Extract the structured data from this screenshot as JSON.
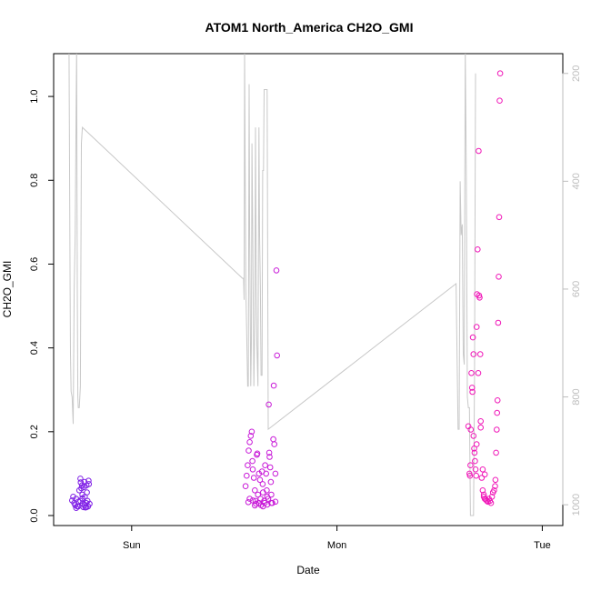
{
  "chart_data": {
    "type": "scatter",
    "title": "ATOM1 North_America CH2O_GMI",
    "xlabel": "Date",
    "ylabel": "CH2O_GMI",
    "x_ticks": [
      "Sun",
      "Mon",
      "Tue"
    ],
    "y_ticks": [
      "0.0",
      "0.2",
      "0.4",
      "0.6",
      "0.8",
      "1.0"
    ],
    "y2_ticks": [
      "200",
      "400",
      "600",
      "800",
      "1000"
    ],
    "ylim": [
      0,
      1.1
    ],
    "y2lim": [
      1020,
      165
    ],
    "xlim_days": [
      -0.38,
      2.1
    ],
    "colors": {
      "pressure_line": "#c8c8c8",
      "points_early": "#7f1fe6",
      "points_late": "#f018b8",
      "axis": "#000000",
      "right_axis": "#bdbdbd"
    },
    "series": [
      {
        "points": [
          [
            -0.29,
            0.036
          ],
          [
            -0.285,
            0.045
          ],
          [
            -0.28,
            0.03
          ],
          [
            -0.275,
            0.025
          ],
          [
            -0.27,
            0.04
          ],
          [
            -0.265,
            0.022
          ],
          [
            -0.26,
            0.033
          ],
          [
            -0.255,
            0.06
          ],
          [
            -0.25,
            0.088
          ],
          [
            -0.248,
            0.079
          ],
          [
            -0.245,
            0.065
          ],
          [
            -0.242,
            0.072
          ],
          [
            -0.24,
            0.05
          ],
          [
            -0.238,
            0.028
          ],
          [
            -0.235,
            0.02
          ],
          [
            -0.232,
            0.068
          ],
          [
            -0.23,
            0.08
          ],
          [
            -0.228,
            0.045
          ],
          [
            -0.225,
            0.019
          ],
          [
            -0.222,
            0.03
          ],
          [
            -0.22,
            0.072
          ],
          [
            -0.218,
            0.055
          ],
          [
            -0.215,
            0.035
          ],
          [
            -0.212,
            0.022
          ],
          [
            -0.21,
            0.083
          ],
          [
            -0.208,
            0.075
          ],
          [
            -0.205,
            0.028
          ],
          [
            -0.27,
            0.018
          ],
          [
            -0.26,
            0.022
          ],
          [
            -0.25,
            0.035
          ],
          [
            -0.24,
            0.041
          ],
          [
            -0.23,
            0.025
          ],
          [
            -0.22,
            0.02
          ]
        ]
      },
      {
        "points": [
          [
            0.555,
            0.07
          ],
          [
            0.56,
            0.095
          ],
          [
            0.565,
            0.12
          ],
          [
            0.57,
            0.155
          ],
          [
            0.575,
            0.175
          ],
          [
            0.58,
            0.19
          ],
          [
            0.585,
            0.2
          ],
          [
            0.588,
            0.13
          ],
          [
            0.59,
            0.11
          ],
          [
            0.595,
            0.09
          ],
          [
            0.6,
            0.06
          ],
          [
            0.603,
            0.035
          ],
          [
            0.606,
            0.028
          ],
          [
            0.61,
            0.145
          ],
          [
            0.612,
            0.148
          ],
          [
            0.615,
            0.05
          ],
          [
            0.618,
            0.03
          ],
          [
            0.62,
            0.1
          ],
          [
            0.625,
            0.085
          ],
          [
            0.628,
            0.04
          ],
          [
            0.63,
            0.025
          ],
          [
            0.635,
            0.105
          ],
          [
            0.638,
            0.075
          ],
          [
            0.64,
            0.055
          ],
          [
            0.645,
            0.035
          ],
          [
            0.648,
            0.03
          ],
          [
            0.65,
            0.12
          ],
          [
            0.655,
            0.1
          ],
          [
            0.658,
            0.06
          ],
          [
            0.66,
            0.045
          ],
          [
            0.665,
            0.04
          ],
          [
            0.668,
            0.265
          ],
          [
            0.67,
            0.15
          ],
          [
            0.672,
            0.14
          ],
          [
            0.675,
            0.115
          ],
          [
            0.678,
            0.08
          ],
          [
            0.68,
            0.05
          ],
          [
            0.685,
            0.03
          ],
          [
            0.69,
            0.182
          ],
          [
            0.692,
            0.31
          ],
          [
            0.695,
            0.17
          ],
          [
            0.7,
            0.1
          ],
          [
            0.705,
            0.585
          ],
          [
            0.708,
            0.382
          ],
          [
            0.568,
            0.032
          ],
          [
            0.575,
            0.04
          ],
          [
            0.59,
            0.036
          ],
          [
            0.6,
            0.024
          ],
          [
            0.62,
            0.03
          ],
          [
            0.64,
            0.022
          ],
          [
            0.66,
            0.026
          ],
          [
            0.68,
            0.03
          ],
          [
            0.7,
            0.033
          ]
        ]
      },
      {
        "points": [
          [
            1.64,
            0.213
          ],
          [
            1.645,
            0.1
          ],
          [
            1.648,
            0.095
          ],
          [
            1.65,
            0.12
          ],
          [
            1.652,
            0.205
          ],
          [
            1.655,
            0.34
          ],
          [
            1.658,
            0.305
          ],
          [
            1.66,
            0.295
          ],
          [
            1.662,
            0.425
          ],
          [
            1.665,
            0.385
          ],
          [
            1.668,
            0.16
          ],
          [
            1.67,
            0.15
          ],
          [
            1.672,
            0.13
          ],
          [
            1.675,
            0.11
          ],
          [
            1.678,
            0.095
          ],
          [
            1.68,
            0.45
          ],
          [
            1.682,
            0.528
          ],
          [
            1.685,
            0.635
          ],
          [
            1.688,
            0.34
          ],
          [
            1.69,
            0.87
          ],
          [
            1.692,
            0.525
          ],
          [
            1.695,
            0.52
          ],
          [
            1.698,
            0.385
          ],
          [
            1.7,
            0.225
          ],
          [
            1.705,
            0.09
          ],
          [
            1.71,
            0.06
          ],
          [
            1.715,
            0.045
          ],
          [
            1.72,
            0.04
          ],
          [
            1.725,
            0.038
          ],
          [
            1.73,
            0.035
          ],
          [
            1.735,
            0.033
          ],
          [
            1.74,
            0.04
          ],
          [
            1.745,
            0.035
          ],
          [
            1.75,
            0.03
          ],
          [
            1.755,
            0.045
          ],
          [
            1.76,
            0.055
          ],
          [
            1.765,
            0.06
          ],
          [
            1.77,
            0.07
          ],
          [
            1.772,
            0.085
          ],
          [
            1.775,
            0.15
          ],
          [
            1.778,
            0.205
          ],
          [
            1.78,
            0.245
          ],
          [
            1.782,
            0.275
          ],
          [
            1.785,
            0.46
          ],
          [
            1.788,
            0.57
          ],
          [
            1.79,
            0.712
          ],
          [
            1.792,
            0.99
          ],
          [
            1.795,
            1.055
          ],
          [
            1.715,
            0.05
          ],
          [
            1.7,
            0.21
          ],
          [
            1.68,
            0.17
          ],
          [
            1.665,
            0.19
          ],
          [
            1.71,
            0.11
          ],
          [
            1.72,
            0.098
          ]
        ]
      }
    ],
    "pressure_line": [
      [
        -0.305,
        150
      ],
      [
        -0.3,
        600
      ],
      [
        -0.298,
        720
      ],
      [
        -0.295,
        790
      ],
      [
        -0.29,
        800
      ],
      [
        -0.285,
        850
      ],
      [
        -0.28,
        600
      ],
      [
        -0.275,
        500
      ],
      [
        -0.27,
        250
      ],
      [
        -0.268,
        150
      ],
      [
        -0.265,
        600
      ],
      [
        -0.262,
        800
      ],
      [
        -0.26,
        820
      ],
      [
        -0.255,
        820
      ],
      [
        -0.25,
        780
      ],
      [
        -0.245,
        330
      ],
      [
        -0.24,
        300
      ],
      [
        0.54,
        580
      ],
      [
        0.545,
        580
      ],
      [
        0.548,
        620
      ],
      [
        0.55,
        150
      ],
      [
        0.553,
        400
      ],
      [
        0.556,
        600
      ],
      [
        0.56,
        680
      ],
      [
        0.565,
        780
      ],
      [
        0.568,
        780
      ],
      [
        0.572,
        220
      ],
      [
        0.575,
        500
      ],
      [
        0.58,
        780
      ],
      [
        0.583,
        700
      ],
      [
        0.586,
        330
      ],
      [
        0.59,
        500
      ],
      [
        0.595,
        780
      ],
      [
        0.6,
        650
      ],
      [
        0.603,
        300
      ],
      [
        0.607,
        600
      ],
      [
        0.61,
        700
      ],
      [
        0.615,
        780
      ],
      [
        0.62,
        300
      ],
      [
        0.623,
        500
      ],
      [
        0.627,
        600
      ],
      [
        0.63,
        760
      ],
      [
        0.635,
        760
      ],
      [
        0.638,
        380
      ],
      [
        0.642,
        380
      ],
      [
        0.645,
        230
      ],
      [
        0.66,
        230
      ],
      [
        0.665,
        860
      ],
      [
        1.58,
        590
      ],
      [
        1.59,
        860
      ],
      [
        1.595,
        860
      ],
      [
        1.6,
        400
      ],
      [
        1.605,
        500
      ],
      [
        1.61,
        480
      ],
      [
        1.615,
        720
      ],
      [
        1.62,
        740
      ],
      [
        1.625,
        150
      ],
      [
        1.63,
        400
      ],
      [
        1.635,
        800
      ],
      [
        1.64,
        820
      ],
      [
        1.645,
        820
      ],
      [
        1.65,
        1020
      ],
      [
        1.665,
        1020
      ],
      [
        1.67,
        760
      ],
      [
        1.675,
        200
      ]
    ]
  }
}
